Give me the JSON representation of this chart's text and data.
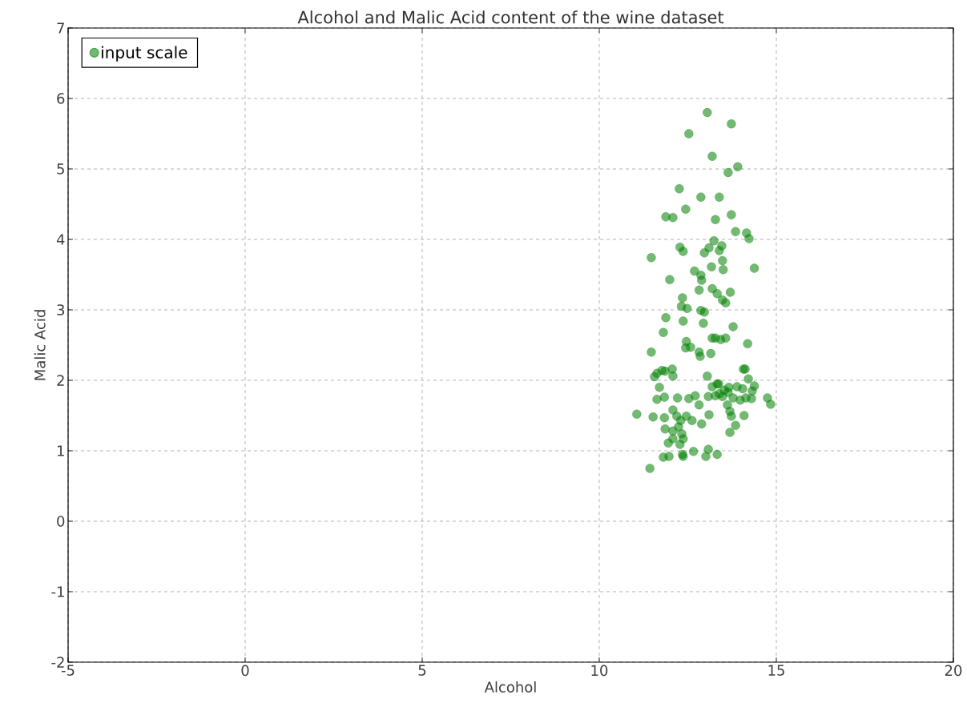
{
  "chart_data": {
    "type": "scatter",
    "title": "Alcohol and Malic Acid content of the wine dataset",
    "xlabel": "Alcohol",
    "ylabel": "Malic Acid",
    "xlim": [
      -5,
      20
    ],
    "ylim": [
      -2,
      7
    ],
    "xticks": [
      -5,
      0,
      5,
      10,
      15,
      20
    ],
    "yticks": [
      -2,
      -1,
      0,
      1,
      2,
      3,
      4,
      5,
      6,
      7
    ],
    "grid": true,
    "legend": "top left",
    "marker": "circle",
    "series": [
      {
        "name": "input scale",
        "color": "#008000",
        "x": [
          13.05,
          13.73,
          12.53,
          13.19,
          13.91,
          13.64,
          12.26,
          12.44,
          11.88,
          12.08,
          12.87,
          13.39,
          13.73,
          13.28,
          13.85,
          14.16,
          14.23,
          13.24,
          13.46,
          12.28,
          12.37,
          13.39,
          12.97,
          13.1,
          11.47,
          13.48,
          14.38,
          12.69,
          12.87,
          13.5,
          13.17,
          12.89,
          12.82,
          11.99,
          13.19,
          13.7,
          13.33,
          13.48,
          12.35,
          12.32,
          12.48,
          13.57,
          12.87,
          12.97,
          11.88,
          12.94,
          12.37,
          13.78,
          13.43,
          12.46,
          13.19,
          13.28,
          13.57,
          11.81,
          14.19,
          12.44,
          12.58,
          12.82,
          13.15,
          12.85,
          11.47,
          11.56,
          11.63,
          11.77,
          11.86,
          12.06,
          12.08,
          11.7,
          13.05,
          14.07,
          14.12,
          14.21,
          14.38,
          14.32,
          13.66,
          13.19,
          13.33,
          13.89,
          11.63,
          11.84,
          12.21,
          12.53,
          12.71,
          12.82,
          13.08,
          13.28,
          13.48,
          13.64,
          13.78,
          13.98,
          14.14,
          14.3,
          14.75,
          14.84,
          11.06,
          12.08,
          11.52,
          11.84,
          12.19,
          12.3,
          12.46,
          12.62,
          12.89,
          13.1,
          13.62,
          13.69,
          13.73,
          14.09,
          13.85,
          13.69,
          11.86,
          12.08,
          12.24,
          12.33,
          12.28,
          11.95,
          12.08,
          12.37,
          11.97,
          11.81,
          12.35,
          12.66,
          13.08,
          13.01,
          13.33,
          11.43,
          12.37,
          13.37,
          13.53,
          13.39,
          14.05
        ],
        "values": [
          5.8,
          5.64,
          5.5,
          5.18,
          5.03,
          4.95,
          4.72,
          4.43,
          4.32,
          4.31,
          4.6,
          4.6,
          4.35,
          4.28,
          4.11,
          4.09,
          4.01,
          3.98,
          3.91,
          3.89,
          3.83,
          3.84,
          3.81,
          3.88,
          3.74,
          3.7,
          3.59,
          3.55,
          3.49,
          3.57,
          3.61,
          3.42,
          3.28,
          3.43,
          3.3,
          3.25,
          3.23,
          3.14,
          3.17,
          3.05,
          3.02,
          3.1,
          2.99,
          2.97,
          2.89,
          2.81,
          2.84,
          2.76,
          2.58,
          2.55,
          2.6,
          2.6,
          2.6,
          2.68,
          2.52,
          2.46,
          2.47,
          2.4,
          2.38,
          2.34,
          2.4,
          2.05,
          2.1,
          2.14,
          2.13,
          2.16,
          2.06,
          1.9,
          2.06,
          2.16,
          2.16,
          2.02,
          1.92,
          1.85,
          1.9,
          1.91,
          1.95,
          1.91,
          1.73,
          1.76,
          1.75,
          1.74,
          1.78,
          1.65,
          1.77,
          1.78,
          1.77,
          1.83,
          1.75,
          1.72,
          1.75,
          1.74,
          1.75,
          1.66,
          1.52,
          1.58,
          1.48,
          1.47,
          1.49,
          1.43,
          1.49,
          1.43,
          1.38,
          1.51,
          1.65,
          1.56,
          1.49,
          1.5,
          1.36,
          1.26,
          1.31,
          1.28,
          1.34,
          1.24,
          1.09,
          1.11,
          1.17,
          1.17,
          0.92,
          0.91,
          0.95,
          0.99,
          1.02,
          0.92,
          0.95,
          0.75,
          0.92,
          1.95,
          1.86,
          1.81,
          1.88
        ]
      }
    ]
  }
}
